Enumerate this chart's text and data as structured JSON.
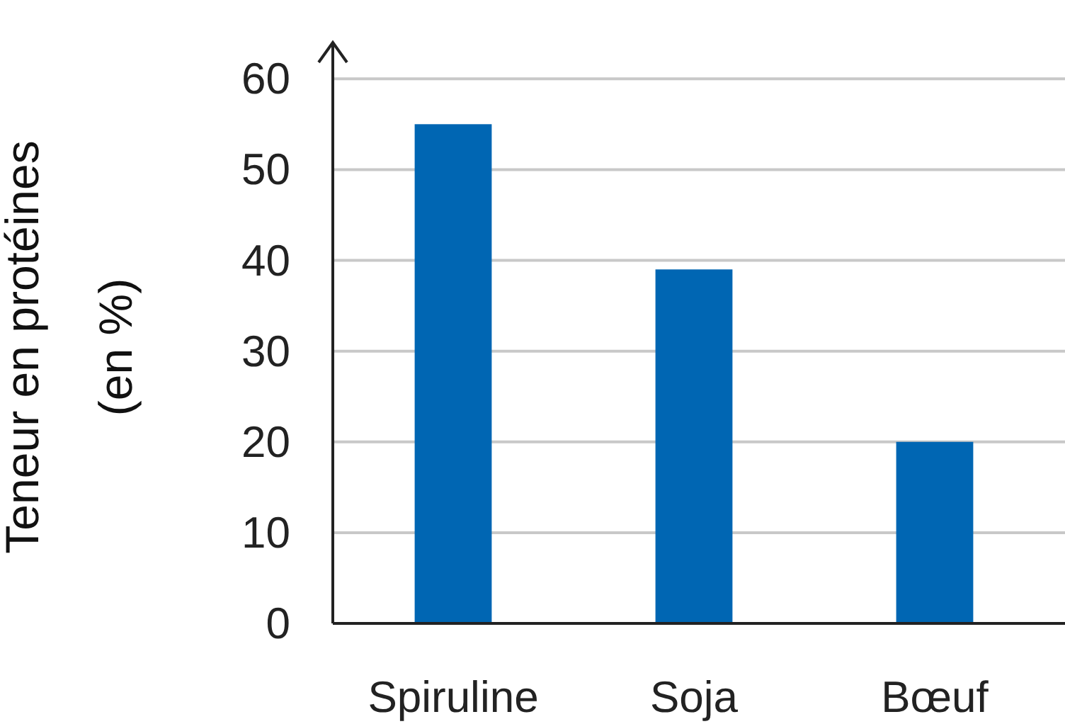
{
  "chart_data": {
    "type": "bar",
    "ylabel": "Teneur en protéines\n(en %)",
    "categories": [
      "Spiruline",
      "Soja",
      "Bœuf"
    ],
    "values": [
      55,
      39,
      20
    ],
    "color": "#0066b3",
    "ylim": [
      0,
      64
    ],
    "yticks": [
      0,
      10,
      20,
      30,
      40,
      50,
      60
    ],
    "grid": "y"
  }
}
